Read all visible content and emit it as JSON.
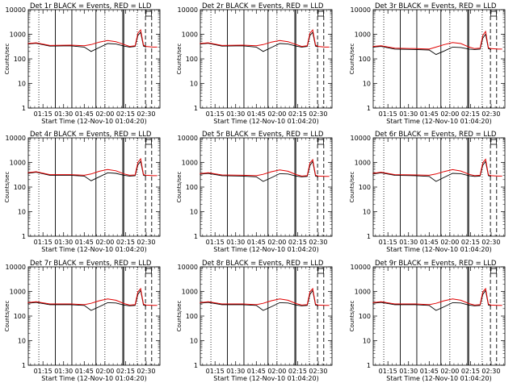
{
  "chart_data": [
    {
      "type": "line",
      "title": "Det 1r BLACK = Events, RED = LLD",
      "xlabel": "Start Time (12-Nov-10 01:04:20)",
      "ylabel": "Counts/sec",
      "yscale": "log",
      "ylim": [
        1,
        10000
      ],
      "xticks": [
        "01:15",
        "01:30",
        "01:45",
        "02:00",
        "02:15",
        "02:30"
      ],
      "yticks": [
        "1",
        "10",
        "100",
        "1000",
        "10000"
      ],
      "series": [
        {
          "color": "#000000",
          "x": [
            "01:04",
            "01:10",
            "01:20",
            "01:35",
            "01:45",
            "01:50",
            "01:56",
            "02:02",
            "02:08",
            "02:14",
            "02:18",
            "02:22",
            "02:24",
            "02:26",
            "02:28",
            "02:30"
          ],
          "values": [
            400,
            430,
            330,
            340,
            300,
            200,
            290,
            420,
            400,
            330,
            300,
            320,
            900,
            1200,
            330,
            300
          ]
        },
        {
          "color": "#e00000",
          "x": [
            "01:04",
            "01:10",
            "01:20",
            "01:35",
            "01:45",
            "01:50",
            "01:56",
            "02:02",
            "02:08",
            "02:14",
            "02:18",
            "02:22",
            "02:24",
            "02:26",
            "02:28",
            "02:30",
            "02:35",
            "02:38"
          ],
          "values": [
            420,
            450,
            350,
            360,
            340,
            380,
            480,
            560,
            500,
            380,
            320,
            340,
            1100,
            1500,
            360,
            320,
            300,
            300
          ]
        }
      ]
    },
    {
      "type": "line",
      "title": "Det 2r BLACK = Events, RED = LLD",
      "xlabel": "Start Time (12-Nov-10 01:04:20)",
      "ylabel": "Counts/sec",
      "yscale": "log",
      "ylim": [
        1,
        10000
      ],
      "xticks": [
        "01:15",
        "01:30",
        "01:45",
        "02:00",
        "02:15",
        "02:30"
      ],
      "yticks": [
        "1",
        "10",
        "100",
        "1000",
        "10000"
      ],
      "series": [
        {
          "color": "#000000",
          "x": [
            "01:04",
            "01:10",
            "01:20",
            "01:35",
            "01:45",
            "01:50",
            "01:56",
            "02:02",
            "02:08",
            "02:14",
            "02:18",
            "02:22",
            "02:24",
            "02:26",
            "02:28",
            "02:30"
          ],
          "values": [
            400,
            430,
            330,
            340,
            300,
            200,
            290,
            420,
            400,
            330,
            300,
            320,
            900,
            1200,
            330,
            300
          ]
        },
        {
          "color": "#e00000",
          "x": [
            "01:04",
            "01:10",
            "01:20",
            "01:35",
            "01:45",
            "01:50",
            "01:56",
            "02:02",
            "02:08",
            "02:14",
            "02:18",
            "02:22",
            "02:24",
            "02:26",
            "02:28",
            "02:30",
            "02:35",
            "02:38"
          ],
          "values": [
            420,
            450,
            350,
            360,
            340,
            380,
            480,
            560,
            500,
            380,
            320,
            340,
            1100,
            1500,
            360,
            320,
            300,
            300
          ]
        }
      ]
    },
    {
      "type": "line",
      "title": "Det 3r BLACK = Events, RED = LLD",
      "xlabel": "Start Time (12-Nov-10 01:04:20)",
      "ylabel": "Counts/sec",
      "yscale": "log",
      "ylim": [
        1,
        10000
      ],
      "xticks": [
        "01:15",
        "01:30",
        "01:45",
        "02:00",
        "02:15",
        "02:30"
      ],
      "yticks": [
        "1",
        "10",
        "100",
        "1000",
        "10000"
      ],
      "series": [
        {
          "color": "#000000",
          "x": [
            "01:04",
            "01:10",
            "01:20",
            "01:35",
            "01:45",
            "01:50",
            "01:56",
            "02:02",
            "02:08",
            "02:14",
            "02:18",
            "02:22",
            "02:24",
            "02:26",
            "02:28",
            "02:30"
          ],
          "values": [
            300,
            320,
            250,
            240,
            230,
            150,
            210,
            300,
            290,
            250,
            240,
            250,
            700,
            1000,
            260,
            240
          ]
        },
        {
          "color": "#e00000",
          "x": [
            "01:04",
            "01:10",
            "01:20",
            "01:35",
            "01:45",
            "01:50",
            "01:56",
            "02:02",
            "02:08",
            "02:14",
            "02:18",
            "02:22",
            "02:24",
            "02:26",
            "02:28",
            "02:30",
            "02:35",
            "02:38"
          ],
          "values": [
            320,
            340,
            270,
            260,
            250,
            300,
            380,
            460,
            420,
            300,
            260,
            270,
            900,
            1300,
            280,
            260,
            250,
            250
          ]
        }
      ]
    },
    {
      "type": "line",
      "title": "Det 4r BLACK = Events, RED = LLD",
      "xlabel": "Start Time (12-Nov-10 01:04:20)",
      "ylabel": "Counts/sec",
      "yscale": "log",
      "ylim": [
        1,
        10000
      ],
      "xticks": [
        "01:15",
        "01:30",
        "01:45",
        "02:00",
        "02:15",
        "02:30"
      ],
      "yticks": [
        "1",
        "10",
        "100",
        "1000",
        "10000"
      ],
      "series": [
        {
          "color": "#000000",
          "x": [
            "01:04",
            "01:10",
            "01:20",
            "01:35",
            "01:45",
            "01:50",
            "01:56",
            "02:02",
            "02:08",
            "02:14",
            "02:18",
            "02:22",
            "02:24",
            "02:26",
            "02:28",
            "02:30"
          ],
          "values": [
            360,
            400,
            300,
            300,
            280,
            180,
            260,
            380,
            360,
            300,
            280,
            290,
            800,
            1100,
            300,
            280
          ]
        },
        {
          "color": "#e00000",
          "x": [
            "01:04",
            "01:10",
            "01:20",
            "01:35",
            "01:45",
            "01:50",
            "01:56",
            "02:02",
            "02:08",
            "02:14",
            "02:18",
            "02:22",
            "02:24",
            "02:26",
            "02:28",
            "02:30",
            "02:35",
            "02:38"
          ],
          "values": [
            380,
            420,
            320,
            320,
            300,
            340,
            440,
            520,
            460,
            340,
            300,
            310,
            1000,
            1400,
            320,
            300,
            290,
            290
          ]
        }
      ]
    },
    {
      "type": "line",
      "title": "Det 5r BLACK = Events, RED = LLD",
      "xlabel": "Start Time (12-Nov-10 01:04:20)",
      "ylabel": "Counts/sec",
      "yscale": "log",
      "ylim": [
        1,
        10000
      ],
      "xticks": [
        "01:15",
        "01:30",
        "01:45",
        "02:00",
        "02:15",
        "02:30"
      ],
      "yticks": [
        "1",
        "10",
        "100",
        "1000",
        "10000"
      ],
      "series": [
        {
          "color": "#000000",
          "x": [
            "01:04",
            "01:10",
            "01:20",
            "01:35",
            "01:45",
            "01:50",
            "01:56",
            "02:02",
            "02:08",
            "02:14",
            "02:18",
            "02:22",
            "02:24",
            "02:26",
            "02:28",
            "02:30"
          ],
          "values": [
            330,
            360,
            290,
            280,
            260,
            170,
            240,
            350,
            340,
            280,
            260,
            270,
            750,
            1100,
            280,
            260
          ]
        },
        {
          "color": "#e00000",
          "x": [
            "01:04",
            "01:10",
            "01:20",
            "01:35",
            "01:45",
            "01:50",
            "01:56",
            "02:02",
            "02:08",
            "02:14",
            "02:18",
            "02:22",
            "02:24",
            "02:26",
            "02:28",
            "02:30",
            "02:35",
            "02:38"
          ],
          "values": [
            350,
            380,
            310,
            300,
            290,
            330,
            420,
            500,
            440,
            320,
            280,
            290,
            950,
            1300,
            300,
            280,
            270,
            270
          ]
        }
      ]
    },
    {
      "type": "line",
      "title": "Det 6r BLACK = Events, RED = LLD",
      "xlabel": "Start Time (12-Nov-10 01:04:20)",
      "ylabel": "Counts/sec",
      "yscale": "log",
      "ylim": [
        1,
        10000
      ],
      "xticks": [
        "01:15",
        "01:30",
        "01:45",
        "02:00",
        "02:15",
        "02:30"
      ],
      "yticks": [
        "1",
        "10",
        "100",
        "1000",
        "10000"
      ],
      "series": [
        {
          "color": "#000000",
          "x": [
            "01:04",
            "01:10",
            "01:20",
            "01:35",
            "01:45",
            "01:50",
            "01:56",
            "02:02",
            "02:08",
            "02:14",
            "02:18",
            "02:22",
            "02:24",
            "02:26",
            "02:28",
            "02:30"
          ],
          "values": [
            340,
            380,
            300,
            290,
            270,
            170,
            250,
            360,
            350,
            290,
            270,
            280,
            780,
            1100,
            290,
            270
          ]
        },
        {
          "color": "#e00000",
          "x": [
            "01:04",
            "01:10",
            "01:20",
            "01:35",
            "01:45",
            "01:50",
            "01:56",
            "02:02",
            "02:08",
            "02:14",
            "02:18",
            "02:22",
            "02:24",
            "02:26",
            "02:28",
            "02:30",
            "02:35",
            "02:38"
          ],
          "values": [
            360,
            400,
            320,
            310,
            300,
            340,
            430,
            510,
            450,
            330,
            290,
            300,
            980,
            1350,
            310,
            290,
            280,
            280
          ]
        }
      ]
    },
    {
      "type": "line",
      "title": "Det 7r BLACK = Events, RED = LLD",
      "xlabel": "Start Time (12-Nov-10 01:04:20)",
      "ylabel": "Counts/sec",
      "yscale": "log",
      "ylim": [
        1,
        10000
      ],
      "xticks": [
        "01:15",
        "01:30",
        "01:45",
        "02:00",
        "02:15",
        "02:30"
      ],
      "yticks": [
        "1",
        "10",
        "100",
        "1000",
        "10000"
      ],
      "series": [
        {
          "color": "#000000",
          "x": [
            "01:04",
            "01:10",
            "01:20",
            "01:35",
            "01:45",
            "01:50",
            "01:56",
            "02:02",
            "02:08",
            "02:14",
            "02:18",
            "02:22",
            "02:24",
            "02:26",
            "02:28",
            "02:30"
          ],
          "values": [
            330,
            360,
            290,
            290,
            270,
            170,
            240,
            350,
            340,
            280,
            260,
            270,
            760,
            1100,
            280,
            260
          ]
        },
        {
          "color": "#e00000",
          "x": [
            "01:04",
            "01:10",
            "01:20",
            "01:35",
            "01:45",
            "01:50",
            "01:56",
            "02:02",
            "02:08",
            "02:14",
            "02:18",
            "02:22",
            "02:24",
            "02:26",
            "02:28",
            "02:30",
            "02:35",
            "02:38"
          ],
          "values": [
            350,
            380,
            310,
            310,
            290,
            330,
            420,
            500,
            440,
            320,
            280,
            290,
            960,
            1300,
            300,
            280,
            270,
            270
          ]
        }
      ]
    },
    {
      "type": "line",
      "title": "Det 8r BLACK = Events, RED = LLD",
      "xlabel": "Start Time (12-Nov-10 01:04:20)",
      "ylabel": "Counts/sec",
      "yscale": "log",
      "ylim": [
        1,
        10000
      ],
      "xticks": [
        "01:15",
        "01:30",
        "01:45",
        "02:00",
        "02:15",
        "02:30"
      ],
      "yticks": [
        "1",
        "10",
        "100",
        "1000",
        "10000"
      ],
      "series": [
        {
          "color": "#000000",
          "x": [
            "01:04",
            "01:10",
            "01:20",
            "01:35",
            "01:45",
            "01:50",
            "01:56",
            "02:02",
            "02:08",
            "02:14",
            "02:18",
            "02:22",
            "02:24",
            "02:26",
            "02:28",
            "02:30"
          ],
          "values": [
            330,
            360,
            290,
            290,
            270,
            170,
            240,
            350,
            340,
            280,
            260,
            270,
            760,
            1100,
            280,
            260
          ]
        },
        {
          "color": "#e00000",
          "x": [
            "01:04",
            "01:10",
            "01:20",
            "01:35",
            "01:45",
            "01:50",
            "01:56",
            "02:02",
            "02:08",
            "02:14",
            "02:18",
            "02:22",
            "02:24",
            "02:26",
            "02:28",
            "02:30",
            "02:35",
            "02:38"
          ],
          "values": [
            350,
            380,
            310,
            310,
            290,
            330,
            420,
            500,
            440,
            320,
            280,
            290,
            960,
            1300,
            300,
            280,
            270,
            270
          ]
        }
      ]
    },
    {
      "type": "line",
      "title": "Det 9r BLACK = Events, RED = LLD",
      "xlabel": "Start Time (12-Nov-10 01:04:20)",
      "ylabel": "Counts/sec",
      "yscale": "log",
      "ylim": [
        1,
        10000
      ],
      "xticks": [
        "01:15",
        "01:30",
        "01:45",
        "02:00",
        "02:15",
        "02:30"
      ],
      "yticks": [
        "1",
        "10",
        "100",
        "1000",
        "10000"
      ],
      "series": [
        {
          "color": "#000000",
          "x": [
            "01:04",
            "01:10",
            "01:20",
            "01:35",
            "01:45",
            "01:50",
            "01:56",
            "02:02",
            "02:08",
            "02:14",
            "02:18",
            "02:22",
            "02:24",
            "02:26",
            "02:28",
            "02:30"
          ],
          "values": [
            330,
            360,
            290,
            290,
            270,
            170,
            240,
            350,
            340,
            280,
            260,
            270,
            760,
            1100,
            280,
            260
          ]
        },
        {
          "color": "#e00000",
          "x": [
            "01:04",
            "01:10",
            "01:20",
            "01:35",
            "01:45",
            "01:50",
            "01:56",
            "02:02",
            "02:08",
            "02:14",
            "02:18",
            "02:22",
            "02:24",
            "02:26",
            "02:28",
            "02:30",
            "02:35",
            "02:38"
          ],
          "values": [
            350,
            380,
            310,
            310,
            290,
            330,
            420,
            500,
            440,
            320,
            280,
            290,
            960,
            1300,
            300,
            280,
            270,
            270
          ]
        }
      ]
    }
  ]
}
